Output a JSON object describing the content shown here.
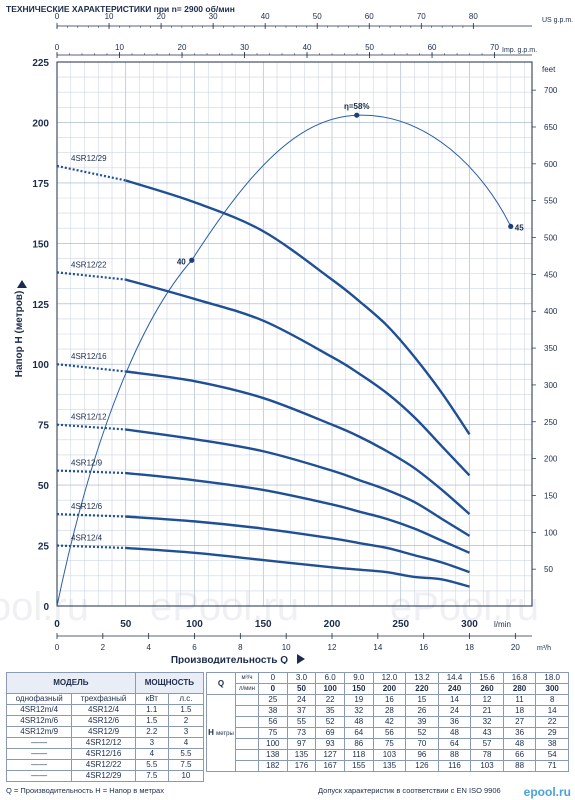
{
  "chart_data": {
    "type": "line",
    "title": "ТЕХНИЧЕСКИЕ ХАРАКТЕРИСТИКИ при n= 2900 об/мин",
    "xlabel": "Производительность  Q",
    "ylabel": "Напор H  (метров)",
    "x_unit": "l/min",
    "x_unit_m3h": "m³/h",
    "y_unit_right": "feet",
    "top_axis_1_label": "US g.p.m.",
    "top_axis_2_label": "Imp. g.p.m.",
    "xlim": [
      0,
      310
    ],
    "ylim": [
      0,
      225
    ],
    "x_ticks": [
      "0",
      "50",
      "100",
      "150",
      "200",
      "250",
      "300"
    ],
    "y_ticks": [
      "0",
      "25",
      "50",
      "75",
      "100",
      "125",
      "150",
      "175",
      "200",
      "225"
    ],
    "m3h_ticks": [
      "0",
      "2",
      "4",
      "6",
      "8",
      "10",
      "12",
      "14",
      "16",
      "18",
      "20"
    ],
    "usgpm_ticks": [
      "0",
      "10",
      "20",
      "30",
      "40",
      "50",
      "60",
      "70",
      "80"
    ],
    "impgpm_ticks": [
      "0",
      "10",
      "20",
      "30",
      "40",
      "50",
      "60",
      "70"
    ],
    "feet_ticks": [
      "50",
      "100",
      "150",
      "200",
      "250",
      "300",
      "350",
      "400",
      "450",
      "500",
      "550",
      "600",
      "650",
      "700"
    ],
    "series": [
      {
        "name": "4SR12/29",
        "x": [
          0,
          50,
          100,
          150,
          200,
          220,
          240,
          260,
          280,
          300
        ],
        "y": [
          182,
          176,
          167,
          155,
          135,
          126,
          116,
          103,
          88,
          71
        ]
      },
      {
        "name": "4SR12/22",
        "x": [
          0,
          50,
          100,
          150,
          200,
          220,
          240,
          260,
          280,
          300
        ],
        "y": [
          138,
          135,
          127,
          118,
          103,
          96,
          88,
          78,
          66,
          54
        ]
      },
      {
        "name": "4SR12/16",
        "x": [
          0,
          50,
          100,
          150,
          200,
          220,
          240,
          260,
          280,
          300
        ],
        "y": [
          100,
          97,
          93,
          86,
          75,
          70,
          64,
          57,
          48,
          38
        ]
      },
      {
        "name": "4SR12/12",
        "x": [
          0,
          50,
          100,
          150,
          200,
          220,
          240,
          260,
          280,
          300
        ],
        "y": [
          75,
          73,
          69,
          64,
          56,
          52,
          48,
          43,
          36,
          29
        ]
      },
      {
        "name": "4SR12/9",
        "x": [
          0,
          50,
          100,
          150,
          200,
          220,
          240,
          260,
          280,
          300
        ],
        "y": [
          56,
          55,
          52,
          48,
          42,
          39,
          36,
          32,
          27,
          22
        ]
      },
      {
        "name": "4SR12/6",
        "x": [
          0,
          50,
          100,
          150,
          200,
          220,
          240,
          260,
          280,
          300
        ],
        "y": [
          38,
          37,
          35,
          32,
          28,
          26,
          24,
          21,
          18,
          14
        ]
      },
      {
        "name": "4SR12/4",
        "x": [
          0,
          50,
          100,
          150,
          200,
          220,
          240,
          260,
          280,
          300
        ],
        "y": [
          25,
          24,
          22,
          19,
          16,
          15,
          14,
          12,
          11,
          8
        ]
      }
    ],
    "efficiency": {
      "label": "η=58%",
      "points": [
        {
          "label": "40",
          "x": 98,
          "y": 143
        },
        {
          "label": "η=58%",
          "x": 218,
          "y": 203
        },
        {
          "label": "45",
          "x": 330,
          "y": 157
        }
      ]
    }
  },
  "table": {
    "model_header": "МОДЕЛЬ",
    "power_header": "МОЩНОСТЬ",
    "single_phase": "однофазный",
    "three_phase": "трехфазный",
    "kw": "кВт",
    "hp": "л.с.",
    "q_label": "Q",
    "m3h": "м³/ч",
    "lmin": "л/мин",
    "h_label": "H",
    "metres": "метры",
    "q_m3h": [
      "0",
      "3.0",
      "6.0",
      "9.0",
      "12.0",
      "13.2",
      "14.4",
      "15.6",
      "16.8",
      "18.0"
    ],
    "q_lmin": [
      "0",
      "50",
      "100",
      "150",
      "200",
      "220",
      "240",
      "260",
      "280",
      "300"
    ],
    "rows": [
      {
        "single": "4SR12m/4",
        "three": "4SR12/4",
        "kw": "1.1",
        "hp": "1.5",
        "h": [
          "25",
          "24",
          "22",
          "19",
          "16",
          "15",
          "14",
          "12",
          "11",
          "8"
        ]
      },
      {
        "single": "4SR12m/6",
        "three": "4SR12/6",
        "kw": "1.5",
        "hp": "2",
        "h": [
          "38",
          "37",
          "35",
          "32",
          "28",
          "26",
          "24",
          "21",
          "18",
          "14"
        ]
      },
      {
        "single": "4SR12m/9",
        "three": "4SR12/9",
        "kw": "2.2",
        "hp": "3",
        "h": [
          "56",
          "55",
          "52",
          "48",
          "42",
          "39",
          "36",
          "32",
          "27",
          "22"
        ]
      },
      {
        "single": "——",
        "three": "4SR12/12",
        "kw": "3",
        "hp": "4",
        "h": [
          "75",
          "73",
          "69",
          "64",
          "56",
          "52",
          "48",
          "43",
          "36",
          "29"
        ]
      },
      {
        "single": "——",
        "three": "4SR12/16",
        "kw": "4",
        "hp": "5.5",
        "h": [
          "100",
          "97",
          "93",
          "86",
          "75",
          "70",
          "64",
          "57",
          "48",
          "38"
        ]
      },
      {
        "single": "——",
        "three": "4SR12/22",
        "kw": "5.5",
        "hp": "7.5",
        "h": [
          "138",
          "135",
          "127",
          "118",
          "103",
          "96",
          "88",
          "78",
          "66",
          "54"
        ]
      },
      {
        "single": "——",
        "three": "4SR12/29",
        "kw": "7.5",
        "hp": "10",
        "h": [
          "182",
          "176",
          "167",
          "155",
          "135",
          "126",
          "116",
          "103",
          "88",
          "71"
        ]
      }
    ]
  },
  "footer": {
    "left": "Q = Производительность    H = Напор в метрах",
    "right": "Допуск характеристик в соответствии с EN ISO 9906"
  },
  "watermark": "ePool.ru",
  "logo": "epool.ru"
}
